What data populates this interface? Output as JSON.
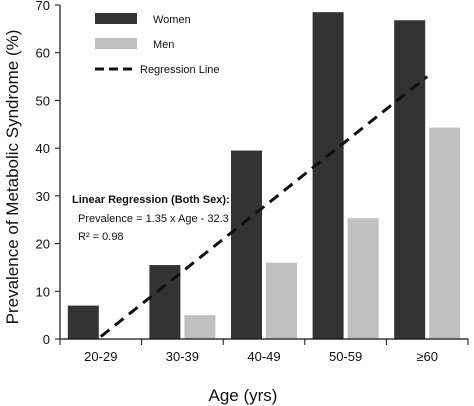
{
  "chart_data": {
    "type": "bar",
    "categories": [
      "20-29",
      "30-39",
      "40-49",
      "50-59",
      "≥60"
    ],
    "series": [
      {
        "name": "Women",
        "color": "#333333",
        "values": [
          7.0,
          15.5,
          39.5,
          68.5,
          66.8
        ]
      },
      {
        "name": "Men",
        "color": "#c0c0c0",
        "values": [
          0,
          5.0,
          16.0,
          25.3,
          44.3
        ]
      }
    ],
    "overlay": {
      "name": "Regression Line",
      "style": "dashed",
      "color": "#111111",
      "from": {
        "category": "20-29",
        "y": 0.5
      },
      "to": {
        "category": "≥60",
        "y": 55
      }
    },
    "xlabel": "Age (yrs)",
    "ylabel": "Prevalence of Metabolic Syndrome (%)",
    "ylim": [
      0,
      70
    ],
    "yticks": [
      0,
      10,
      20,
      30,
      40,
      50,
      60,
      70
    ],
    "grid": false,
    "legend_position": "top-left",
    "annotation": {
      "title": "Linear Regression (Both Sex):",
      "line1": "Prevalence = 1.35 x Age - 32.3",
      "line2": "R² = 0.98"
    }
  }
}
